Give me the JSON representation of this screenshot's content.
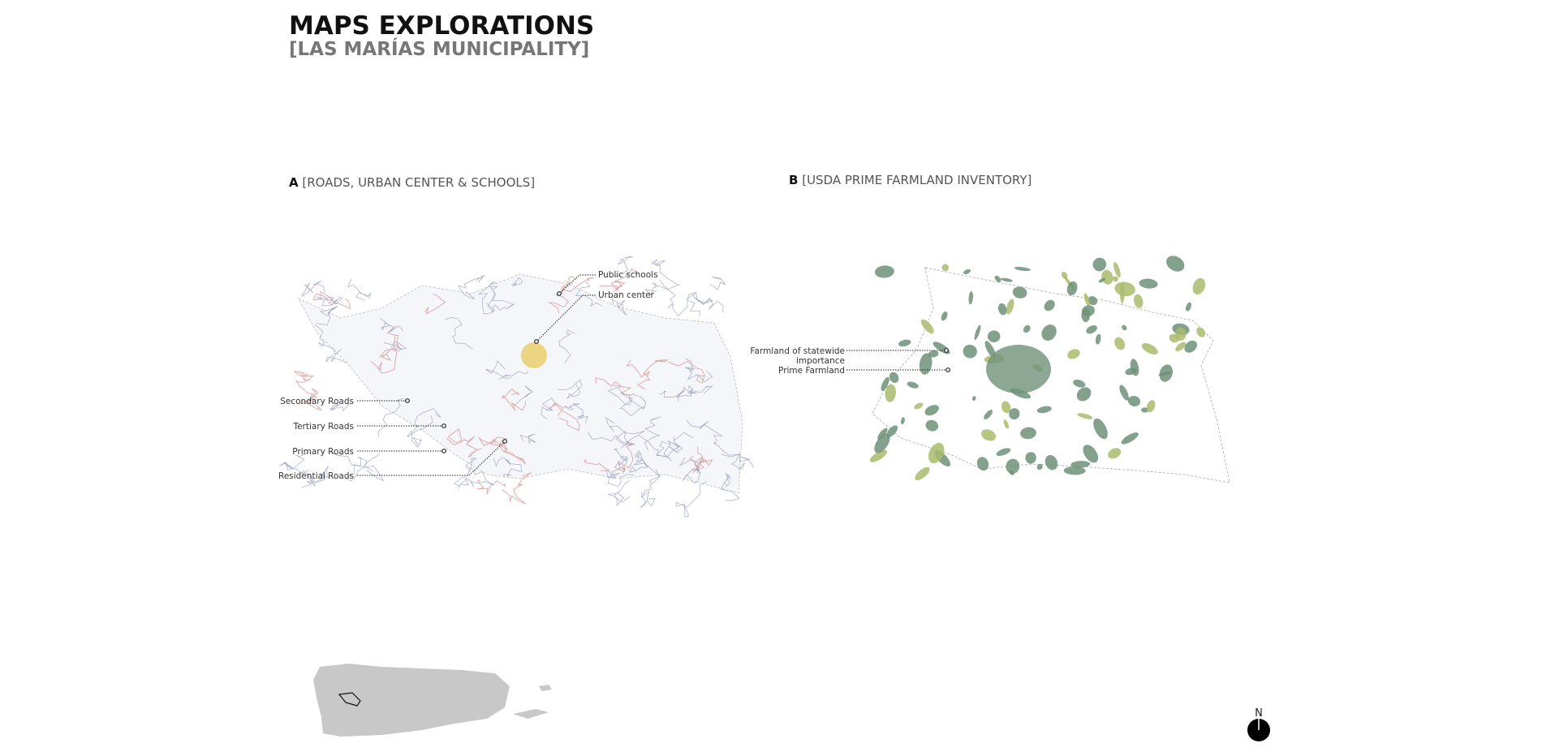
{
  "header": {
    "title": "MAPS EXPLORATIONS",
    "subtitle": "[LAS MARÍAS MUNICIPALITY]"
  },
  "maps": [
    {
      "letter": "A",
      "title": "[ROADS, URBAN CENTER & SCHOOLS]",
      "labels": [
        "Public schools",
        "Urban center",
        "Secondary Roads",
        "Tertiary Roads",
        "Primary Roads",
        "Residential Roads"
      ]
    },
    {
      "letter": "B",
      "title": "[USDA PRIME FARMLAND INVENTORY]",
      "labels": [
        "Farmland of statewide",
        "importance",
        "Prime Farmland"
      ]
    }
  ],
  "north": "N"
}
